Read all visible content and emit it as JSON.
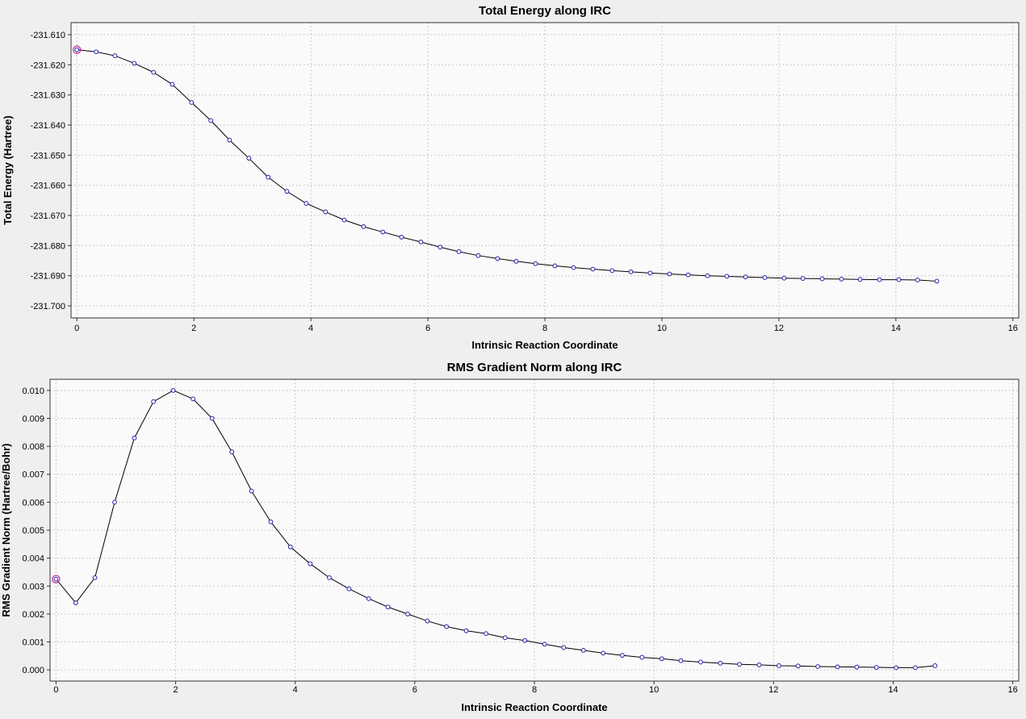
{
  "colors": {
    "background": "#efefef",
    "plot_background": "#fafafa",
    "grid": "#b8b8b8",
    "axis": "#333333"
  },
  "chart_data": [
    {
      "type": "line",
      "title": "Total Energy along IRC",
      "xlabel": "Intrinsic Reaction Coordinate",
      "ylabel": "Total Energy (Hartree)",
      "xlim": [
        0,
        16
      ],
      "ylim": [
        -231.7,
        -231.61
      ],
      "xtick_step": 2,
      "ytick_step": 0.01,
      "xtick_decimals": 0,
      "ytick_decimals": 3,
      "grid": true,
      "legend": "none",
      "line_color": "#000000",
      "marker_color": "#2222aa",
      "marker_fill": "#ffffff",
      "highlight_first_point": true,
      "highlight_color": "#cc3399",
      "x": [
        0.0,
        0.33,
        0.65,
        0.98,
        1.31,
        1.63,
        1.96,
        2.29,
        2.61,
        2.94,
        3.27,
        3.59,
        3.92,
        4.25,
        4.57,
        4.9,
        5.23,
        5.55,
        5.88,
        6.21,
        6.53,
        6.86,
        7.19,
        7.51,
        7.84,
        8.17,
        8.49,
        8.82,
        9.15,
        9.47,
        9.8,
        10.13,
        10.45,
        10.78,
        11.11,
        11.43,
        11.76,
        12.09,
        12.41,
        12.74,
        13.07,
        13.39,
        13.72,
        14.05,
        14.37,
        14.7
      ],
      "y": [
        -231.615,
        -231.6157,
        -231.617,
        -231.6195,
        -231.6225,
        -231.6265,
        -231.6325,
        -231.6385,
        -231.645,
        -231.651,
        -231.6573,
        -231.662,
        -231.666,
        -231.6688,
        -231.6715,
        -231.6737,
        -231.6755,
        -231.6772,
        -231.6788,
        -231.6805,
        -231.682,
        -231.6833,
        -231.6843,
        -231.6852,
        -231.686,
        -231.6867,
        -231.6873,
        -231.6878,
        -231.6883,
        -231.6887,
        -231.6891,
        -231.6894,
        -231.6897,
        -231.69,
        -231.6902,
        -231.6904,
        -231.6906,
        -231.6908,
        -231.6909,
        -231.691,
        -231.6911,
        -231.6912,
        -231.6913,
        -231.6913,
        -231.6914,
        -231.6918
      ]
    },
    {
      "type": "line",
      "title": "RMS Gradient Norm along IRC",
      "xlabel": "Intrinsic Reaction Coordinate",
      "ylabel": "RMS Gradient Norm (Hartree/Bohr)",
      "xlim": [
        0,
        16
      ],
      "ylim": [
        0.0,
        0.01
      ],
      "xtick_step": 2,
      "ytick_step": 0.001,
      "xtick_decimals": 0,
      "ytick_decimals": 3,
      "grid": true,
      "legend": "none",
      "line_color": "#000000",
      "marker_color": "#2222aa",
      "marker_fill": "#ffffff",
      "highlight_first_point": true,
      "highlight_color": "#cc3399",
      "x": [
        0.0,
        0.33,
        0.65,
        0.98,
        1.31,
        1.63,
        1.96,
        2.29,
        2.61,
        2.94,
        3.27,
        3.59,
        3.92,
        4.25,
        4.57,
        4.9,
        5.23,
        5.55,
        5.88,
        6.21,
        6.53,
        6.86,
        7.19,
        7.51,
        7.84,
        8.17,
        8.49,
        8.82,
        9.15,
        9.47,
        9.8,
        10.13,
        10.45,
        10.78,
        11.11,
        11.43,
        11.76,
        12.09,
        12.41,
        12.74,
        13.07,
        13.39,
        13.72,
        14.05,
        14.37,
        14.7
      ],
      "y": [
        0.00325,
        0.0024,
        0.0033,
        0.006,
        0.0083,
        0.0096,
        0.01,
        0.0097,
        0.009,
        0.0078,
        0.0064,
        0.0053,
        0.0044,
        0.0038,
        0.0033,
        0.0029,
        0.00255,
        0.00225,
        0.002,
        0.00175,
        0.00155,
        0.0014,
        0.0013,
        0.00115,
        0.00105,
        0.00092,
        0.0008,
        0.0007,
        0.0006,
        0.00052,
        0.00045,
        0.0004,
        0.00033,
        0.00028,
        0.00024,
        0.0002,
        0.00018,
        0.00015,
        0.00014,
        0.00012,
        0.00011,
        0.0001,
        9e-05,
        8e-05,
        8e-05,
        0.00015
      ]
    }
  ]
}
